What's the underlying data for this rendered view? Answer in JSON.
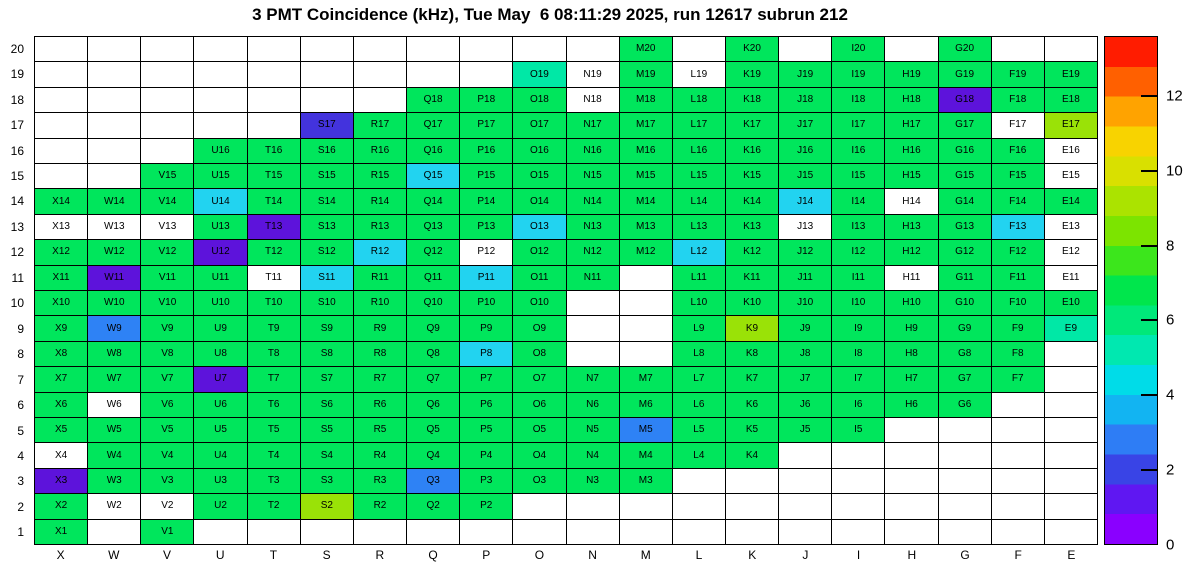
{
  "chart_data": {
    "type": "heatmap",
    "title": "3 PMT Coincidence (kHz), Tue May  6 08:11:29 2025, run 12617 subrun 212",
    "units": "kHz",
    "columns": [
      "X",
      "W",
      "V",
      "U",
      "T",
      "S",
      "R",
      "Q",
      "P",
      "O",
      "N",
      "M",
      "L",
      "K",
      "J",
      "I",
      "H",
      "G",
      "F",
      "E"
    ],
    "rows": [
      20,
      19,
      18,
      17,
      16,
      15,
      14,
      13,
      12,
      11,
      10,
      9,
      8,
      7,
      6,
      5,
      4,
      3,
      2,
      1
    ],
    "palette": {
      "g": {
        "hex": "#00e65c",
        "approx_kHz": 6.5
      },
      "pg": {
        "hex": "#00e8a6",
        "approx_kHz": 5.5
      },
      "c": {
        "hex": "#22d3f0",
        "approx_kHz": 4.5
      },
      "b": {
        "hex": "#2e82f5",
        "approx_kHz": 2.5
      },
      "v": {
        "hex": "#5d13db",
        "approx_kHz": 0.7
      },
      "i": {
        "hex": "#4333dd",
        "approx_kHz": 1.3
      },
      "y": {
        "hex": "#9ae207",
        "approx_kHz": 8.5
      },
      "w": {
        "hex": "#ffffff",
        "approx_kHz": null
      }
    },
    "grid": [
      {
        "row": 20,
        "cells": [
          "",
          "",
          "",
          "",
          "",
          "",
          "",
          "",
          "",
          "",
          "",
          "M20:g",
          "",
          "K20:g",
          "",
          "I20:g",
          "",
          "G20:g",
          "",
          ""
        ]
      },
      {
        "row": 19,
        "cells": [
          "",
          "",
          "",
          "",
          "",
          "",
          "",
          "",
          "",
          "O19:pg",
          "N19:w",
          "M19:g",
          "L19:w",
          "K19:g",
          "J19:g",
          "I19:g",
          "H19:g",
          "G19:g",
          "F19:g",
          "E19:g"
        ]
      },
      {
        "row": 18,
        "cells": [
          "",
          "",
          "",
          "",
          "",
          "",
          "",
          "Q18:g",
          "P18:g",
          "O18:g",
          "N18:w",
          "M18:g",
          "L18:g",
          "K18:g",
          "J18:g",
          "I18:g",
          "H18:g",
          "G18:v",
          "F18:g",
          "E18:g"
        ]
      },
      {
        "row": 17,
        "cells": [
          "",
          "",
          "",
          "",
          "",
          "S17:i",
          "R17:g",
          "Q17:g",
          "P17:g",
          "O17:g",
          "N17:g",
          "M17:g",
          "L17:g",
          "K17:g",
          "J17:g",
          "I17:g",
          "H17:g",
          "G17:g",
          "F17:w",
          "E17:y"
        ]
      },
      {
        "row": 16,
        "cells": [
          "",
          "",
          "",
          "U16:g",
          "T16:g",
          "S16:g",
          "R16:g",
          "Q16:g",
          "P16:g",
          "O16:g",
          "N16:g",
          "M16:g",
          "L16:g",
          "K16:g",
          "J16:g",
          "I16:g",
          "H16:g",
          "G16:g",
          "F16:g",
          "E16:w"
        ]
      },
      {
        "row": 15,
        "cells": [
          "",
          "",
          "V15:g",
          "U15:g",
          "T15:g",
          "S15:g",
          "R15:g",
          "Q15:c",
          "P15:g",
          "O15:g",
          "N15:g",
          "M15:g",
          "L15:g",
          "K15:g",
          "J15:g",
          "I15:g",
          "H15:g",
          "G15:g",
          "F15:g",
          "E15:w"
        ]
      },
      {
        "row": 14,
        "cells": [
          "X14:g",
          "W14:g",
          "V14:g",
          "U14:c",
          "T14:g",
          "S14:g",
          "R14:g",
          "Q14:g",
          "P14:g",
          "O14:g",
          "N14:g",
          "M14:g",
          "L14:g",
          "K14:g",
          "J14:c",
          "I14:g",
          "H14:w",
          "G14:g",
          "F14:g",
          "E14:g"
        ]
      },
      {
        "row": 13,
        "cells": [
          "X13:w",
          "W13:w",
          "V13:w",
          "U13:g",
          "T13:v",
          "S13:g",
          "R13:g",
          "Q13:g",
          "P13:g",
          "O13:c",
          "N13:g",
          "M13:g",
          "L13:g",
          "K13:g",
          "J13:w",
          "I13:g",
          "H13:g",
          "G13:g",
          "F13:c",
          "E13:w"
        ]
      },
      {
        "row": 12,
        "cells": [
          "X12:g",
          "W12:g",
          "V12:g",
          "U12:v",
          "T12:g",
          "S12:g",
          "R12:c",
          "Q12:g",
          "P12:w",
          "O12:g",
          "N12:g",
          "M12:g",
          "L12:c",
          "K12:g",
          "J12:g",
          "I12:g",
          "H12:g",
          "G12:g",
          "F12:g",
          "E12:w"
        ]
      },
      {
        "row": 11,
        "cells": [
          "X11:g",
          "W11:v",
          "V11:g",
          "U11:g",
          "T11:w",
          "S11:c",
          "R11:g",
          "Q11:g",
          "P11:c",
          "O11:g",
          "N11:g",
          "",
          "L11:g",
          "K11:g",
          "J11:g",
          "I11:g",
          "H11:w",
          "G11:g",
          "F11:g",
          "E11:w"
        ]
      },
      {
        "row": 10,
        "cells": [
          "X10:g",
          "W10:g",
          "V10:g",
          "U10:g",
          "T10:g",
          "S10:g",
          "R10:g",
          "Q10:g",
          "P10:g",
          "O10:g",
          "",
          "",
          "L10:g",
          "K10:g",
          "J10:g",
          "I10:g",
          "H10:g",
          "G10:g",
          "F10:g",
          "E10:g"
        ]
      },
      {
        "row": 9,
        "cells": [
          "X9:g",
          "W9:b",
          "V9:g",
          "U9:g",
          "T9:g",
          "S9:g",
          "R9:g",
          "Q9:g",
          "P9:g",
          "O9:g",
          "",
          "",
          "L9:g",
          "K9:y",
          "J9:g",
          "I9:g",
          "H9:g",
          "G9:g",
          "F9:g",
          "E9:pg"
        ]
      },
      {
        "row": 8,
        "cells": [
          "X8:g",
          "W8:g",
          "V8:g",
          "U8:g",
          "T8:g",
          "S8:g",
          "R8:g",
          "Q8:g",
          "P8:c",
          "O8:g",
          "",
          "",
          "L8:g",
          "K8:g",
          "J8:g",
          "I8:g",
          "H8:g",
          "G8:g",
          "F8:g",
          ""
        ]
      },
      {
        "row": 7,
        "cells": [
          "X7:g",
          "W7:g",
          "V7:g",
          "U7:v",
          "T7:g",
          "S7:g",
          "R7:g",
          "Q7:g",
          "P7:g",
          "O7:g",
          "N7:g",
          "M7:g",
          "L7:g",
          "K7:g",
          "J7:g",
          "I7:g",
          "H7:g",
          "G7:g",
          "F7:g",
          ""
        ]
      },
      {
        "row": 6,
        "cells": [
          "X6:g",
          "W6:w",
          "V6:g",
          "U6:g",
          "T6:g",
          "S6:g",
          "R6:g",
          "Q6:g",
          "P6:g",
          "O6:g",
          "N6:g",
          "M6:g",
          "L6:g",
          "K6:g",
          "J6:g",
          "I6:g",
          "H6:g",
          "G6:g",
          "",
          ""
        ]
      },
      {
        "row": 5,
        "cells": [
          "X5:g",
          "W5:g",
          "V5:g",
          "U5:g",
          "T5:g",
          "S5:g",
          "R5:g",
          "Q5:g",
          "P5:g",
          "O5:g",
          "N5:g",
          "M5:b",
          "L5:g",
          "K5:g",
          "J5:g",
          "I5:g",
          "",
          "",
          "",
          ""
        ]
      },
      {
        "row": 4,
        "cells": [
          "X4:w",
          "W4:g",
          "V4:g",
          "U4:g",
          "T4:g",
          "S4:g",
          "R4:g",
          "Q4:g",
          "P4:g",
          "O4:g",
          "N4:g",
          "M4:g",
          "L4:g",
          "K4:g",
          "",
          "",
          "",
          "",
          "",
          ""
        ]
      },
      {
        "row": 3,
        "cells": [
          "X3:v",
          "W3:g",
          "V3:g",
          "U3:g",
          "T3:g",
          "S3:g",
          "R3:g",
          "Q3:b",
          "P3:g",
          "O3:g",
          "N3:g",
          "M3:g",
          "",
          "",
          "",
          "",
          "",
          "",
          "",
          ""
        ]
      },
      {
        "row": 2,
        "cells": [
          "X2:g",
          "W2:w",
          "V2:w",
          "U2:g",
          "T2:g",
          "S2:y",
          "R2:g",
          "Q2:g",
          "P2:g",
          "",
          "",
          "",
          "",
          "",
          "",
          "",
          "",
          "",
          "",
          ""
        ]
      },
      {
        "row": 1,
        "cells": [
          "X1:g",
          "",
          "V1:g",
          "",
          "",
          "",
          "",
          "",
          "",
          "",
          "",
          "",
          "",
          "",
          "",
          "",
          "",
          "",
          "",
          ""
        ]
      }
    ],
    "colorbar": {
      "min": 0,
      "max": 13.6,
      "ticks": [
        0,
        2,
        4,
        6,
        8,
        10,
        12
      ],
      "bands": [
        {
          "from": 0.0,
          "to": 0.8,
          "hex": "#8a00ff"
        },
        {
          "from": 0.8,
          "to": 1.6,
          "hex": "#5f17f2"
        },
        {
          "from": 1.6,
          "to": 2.4,
          "hex": "#3944e6"
        },
        {
          "from": 2.4,
          "to": 3.2,
          "hex": "#2e7df5"
        },
        {
          "from": 3.2,
          "to": 4.0,
          "hex": "#12b4f2"
        },
        {
          "from": 4.0,
          "to": 4.8,
          "hex": "#00dce8"
        },
        {
          "from": 4.8,
          "to": 5.6,
          "hex": "#00e8b0"
        },
        {
          "from": 5.6,
          "to": 6.4,
          "hex": "#00e87a"
        },
        {
          "from": 6.4,
          "to": 7.2,
          "hex": "#00e64c"
        },
        {
          "from": 7.2,
          "to": 8.0,
          "hex": "#3ce61c"
        },
        {
          "from": 8.0,
          "to": 8.8,
          "hex": "#7ce400"
        },
        {
          "from": 8.8,
          "to": 9.6,
          "hex": "#abe300"
        },
        {
          "from": 9.6,
          "to": 10.4,
          "hex": "#d9e000"
        },
        {
          "from": 10.4,
          "to": 11.2,
          "hex": "#f8d300"
        },
        {
          "from": 11.2,
          "to": 12.0,
          "hex": "#ffa300"
        },
        {
          "from": 12.0,
          "to": 12.8,
          "hex": "#ff6000"
        },
        {
          "from": 12.8,
          "to": 13.6,
          "hex": "#ff1c00"
        }
      ]
    }
  }
}
